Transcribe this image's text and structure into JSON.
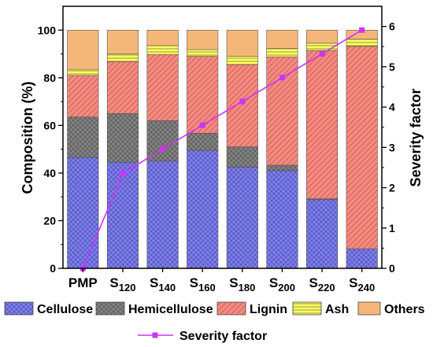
{
  "chart_data": {
    "type": "bar",
    "stacked": true,
    "categories": [
      {
        "main": "PMP",
        "sub": ""
      },
      {
        "main": "S",
        "sub": "120"
      },
      {
        "main": "S",
        "sub": "140"
      },
      {
        "main": "S",
        "sub": "160"
      },
      {
        "main": "S",
        "sub": "180"
      },
      {
        "main": "S",
        "sub": "200"
      },
      {
        "main": "S",
        "sub": "220"
      },
      {
        "main": "S",
        "sub": "240"
      }
    ],
    "series": [
      {
        "name": "Cellulose",
        "color": "#7b7bf0",
        "pattern": "crosshatch",
        "values": [
          46.5,
          44.5,
          45.0,
          49.5,
          42.5,
          41.0,
          28.8,
          8.2
        ]
      },
      {
        "name": "Hemicellulose",
        "color": "#808080",
        "pattern": "crosshatch",
        "values": [
          17.0,
          20.5,
          17.0,
          7.2,
          8.5,
          2.3,
          0.4,
          0.0
        ]
      },
      {
        "name": "Lignin",
        "color": "#f28b82",
        "pattern": "diagonal",
        "values": [
          17.5,
          21.8,
          27.8,
          32.3,
          34.5,
          45.5,
          62.3,
          85.0
        ]
      },
      {
        "name": "Ash",
        "color": "#ffff66",
        "pattern": "horizontal",
        "values": [
          2.5,
          3.2,
          3.7,
          2.8,
          3.5,
          3.5,
          3.0,
          3.0
        ]
      },
      {
        "name": "Others",
        "color": "#f5b779",
        "pattern": "none",
        "values": [
          16.5,
          10.0,
          6.5,
          8.2,
          11.0,
          7.7,
          5.5,
          3.8
        ]
      }
    ],
    "line_series": {
      "name": "Severity factor",
      "color": "#cc33ff",
      "axis": "right",
      "values": [
        0,
        2.35,
        2.96,
        3.55,
        4.14,
        4.73,
        5.32,
        5.91
      ]
    },
    "ylabel": "Composition (%)",
    "y2label": "Severity factor",
    "ylim": [
      0,
      110
    ],
    "y2lim": [
      0,
      6.5
    ],
    "yticks": [
      0,
      20,
      40,
      60,
      80,
      100
    ],
    "y2ticks": [
      0,
      1,
      2,
      3,
      4,
      5,
      6
    ],
    "grid": false,
    "legend_placement": "bottom"
  }
}
